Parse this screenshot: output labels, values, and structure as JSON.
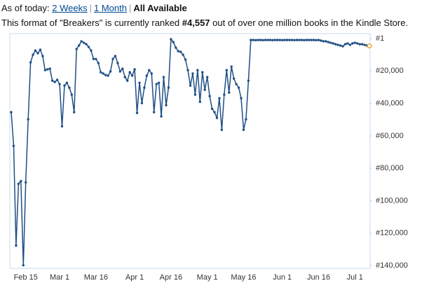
{
  "header": {
    "as_of": "As of today:",
    "options": [
      "2 Weeks",
      "1 Month",
      "All Available"
    ],
    "separator": "|",
    "rank_before": "This format of \"Breakers\" is currently ranked ",
    "rank": "#4,557",
    "rank_after": " out of over one million books in the Kindle Store."
  },
  "chart_data": {
    "type": "line",
    "color": "#1f4f86",
    "highlight_last_color": "#f0a030",
    "y_inverted": true,
    "y_axis_side": "right",
    "ylim": [
      1,
      140000
    ],
    "yticks": [
      {
        "value": 1,
        "label": "#1"
      },
      {
        "value": 20000,
        "label": "#20,000"
      },
      {
        "value": 40000,
        "label": "#40,000"
      },
      {
        "value": 60000,
        "label": "#60,000"
      },
      {
        "value": 80000,
        "label": "#80,000"
      },
      {
        "value": 100000,
        "label": "#100,000"
      },
      {
        "value": 120000,
        "label": "#120,000"
      },
      {
        "value": 140000,
        "label": "#140,000"
      }
    ],
    "categories": [
      null,
      null,
      null,
      null,
      null,
      null,
      "Feb 15",
      null,
      null,
      null,
      null,
      null,
      null,
      null,
      null,
      null,
      null,
      null,
      null,
      null,
      "Mar 1",
      null,
      null,
      null,
      null,
      null,
      null,
      null,
      null,
      null,
      null,
      null,
      null,
      null,
      null,
      "Mar 16",
      null,
      null,
      null,
      null,
      null,
      null,
      null,
      null,
      null,
      null,
      null,
      null,
      null,
      null,
      null,
      "Apr 1",
      null,
      null,
      null,
      null,
      null,
      null,
      null,
      null,
      null,
      null,
      null,
      null,
      null,
      null,
      "Apr 16",
      null,
      null,
      null,
      null,
      null,
      null,
      null,
      null,
      null,
      null,
      null,
      null,
      null,
      null,
      "May 1",
      null,
      null,
      null,
      null,
      null,
      null,
      null,
      null,
      null,
      null,
      null,
      null,
      null,
      null,
      "May 16",
      null,
      null,
      null,
      null,
      null,
      null,
      null,
      null,
      null,
      null,
      null,
      null,
      null,
      null,
      null,
      "Jun 1",
      null,
      null,
      null,
      null,
      null,
      null,
      null,
      null,
      null,
      null,
      null,
      null,
      null,
      null,
      "Jun 16",
      null,
      null,
      null,
      null,
      null,
      null,
      null,
      null,
      null,
      null,
      null,
      null,
      null,
      null,
      "Jul 1",
      null,
      null,
      null,
      null,
      null,
      null
    ],
    "values": [
      45400,
      66200,
      127700,
      89600,
      87900,
      139800,
      88700,
      49800,
      14700,
      10000,
      7400,
      9100,
      6900,
      10800,
      19500,
      19000,
      18600,
      26000,
      26800,
      25500,
      28100,
      54100,
      29000,
      27300,
      30300,
      34600,
      45400,
      6500,
      4300,
      1700,
      2600,
      3500,
      5200,
      7400,
      12600,
      12600,
      15100,
      20800,
      21600,
      22500,
      22900,
      20300,
      12600,
      10800,
      15100,
      20300,
      18600,
      23800,
      26000,
      20800,
      22900,
      19000,
      45900,
      27300,
      39800,
      30300,
      22900,
      19500,
      21600,
      45400,
      28100,
      27300,
      48000,
      23800,
      41100,
      30300,
      400,
      2200,
      5600,
      7800,
      8200,
      10000,
      13000,
      19500,
      29000,
      21600,
      34600,
      19500,
      39000,
      20800,
      31600,
      23800,
      35500,
      43300,
      45400,
      48900,
      36800,
      56300,
      34600,
      19500,
      33300,
      17300,
      24700,
      28100,
      30300,
      36800,
      56300,
      49800,
      26000,
      900,
      900,
      1000,
      900,
      900,
      1000,
      900,
      900,
      900,
      1000,
      900,
      900,
      900,
      1000,
      900,
      900,
      900,
      900,
      1000,
      900,
      900,
      900,
      1000,
      900,
      900,
      900,
      900,
      1000,
      900,
      1300,
      1700,
      1700,
      2200,
      2600,
      3000,
      3500,
      3900,
      4300,
      4800,
      3500,
      3000,
      3900,
      3000,
      2600,
      3000,
      3500,
      3500,
      3900,
      4300,
      4557
    ]
  }
}
